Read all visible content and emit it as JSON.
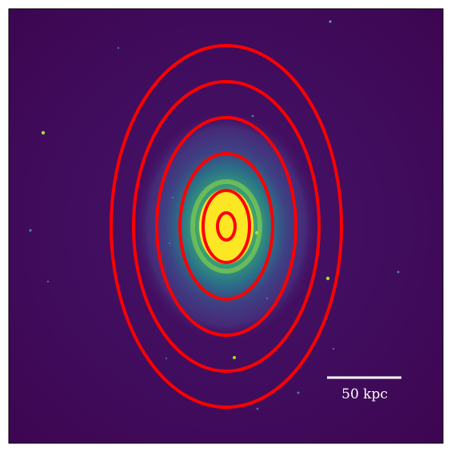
{
  "image": {
    "subject": "galaxy-isophote-map",
    "background_color": "#3e0a57",
    "core_color": "#fde725",
    "contour_color": "#ff0000",
    "scalebar_color": "#ffffff"
  },
  "scale_bar": {
    "label": "50 kpc"
  },
  "contours": {
    "count": 6
  }
}
